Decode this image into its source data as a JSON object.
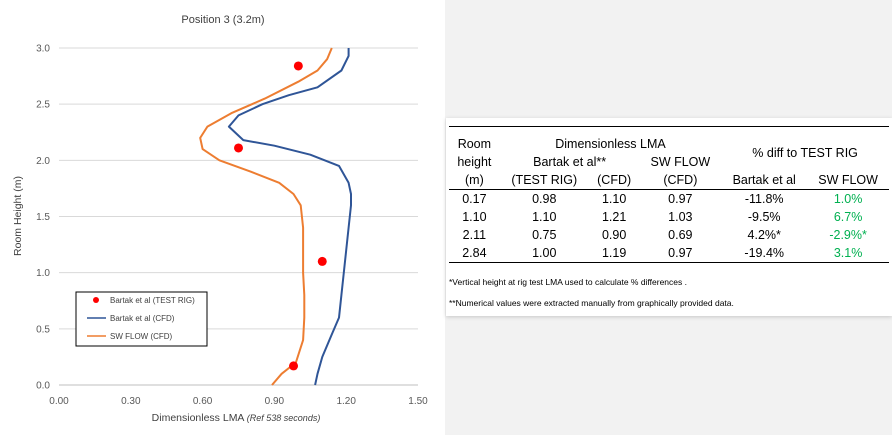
{
  "chart_data": {
    "type": "line",
    "title": "Position 3 (3.2m)",
    "xlabel_main": "Dimensionless LMA ",
    "xlabel_note": "(Ref 538 seconds)",
    "ylabel": "Room Height (m)",
    "xlim": [
      0,
      1.5
    ],
    "ylim": [
      0,
      3.0
    ],
    "xticks": [
      "0.00",
      "0.30",
      "0.60",
      "0.90",
      "1.20",
      "1.50"
    ],
    "yticks": [
      "0.0",
      "0.5",
      "1.0",
      "1.5",
      "2.0",
      "2.5",
      "3.0"
    ],
    "grid": "horizontal",
    "legend_position": "bottom-left",
    "series": [
      {
        "name": "Bartak et al (TEST RIG)",
        "kind": "scatter",
        "color": "#ff0000",
        "x": [
          0.98,
          1.1,
          0.75,
          1.0
        ],
        "y": [
          0.17,
          1.1,
          2.11,
          2.84
        ]
      },
      {
        "name": "Bartak et al (CFD)",
        "kind": "line",
        "color": "#2f5597",
        "x": [
          1.07,
          1.08,
          1.1,
          1.14,
          1.17,
          1.18,
          1.19,
          1.2,
          1.21,
          1.22,
          1.22,
          1.21,
          1.17,
          1.05,
          0.9,
          0.77,
          0.71,
          0.75,
          0.85,
          0.96,
          1.08,
          1.18,
          1.21,
          1.21
        ],
        "y": [
          0.0,
          0.1,
          0.25,
          0.45,
          0.6,
          0.8,
          1.0,
          1.2,
          1.4,
          1.6,
          1.7,
          1.8,
          1.95,
          2.05,
          2.13,
          2.18,
          2.3,
          2.4,
          2.5,
          2.58,
          2.65,
          2.8,
          2.93,
          3.0
        ]
      },
      {
        "name": "SW FLOW (CFD)",
        "kind": "line",
        "color": "#ed7d31",
        "x": [
          0.89,
          0.93,
          0.99,
          1.02,
          1.025,
          1.025,
          1.02,
          1.02,
          1.02,
          1.01,
          0.98,
          0.92,
          0.8,
          0.67,
          0.6,
          0.59,
          0.62,
          0.72,
          0.86,
          1.0,
          1.08,
          1.12,
          1.14
        ],
        "y": [
          0.0,
          0.1,
          0.2,
          0.4,
          0.6,
          0.8,
          1.0,
          1.2,
          1.4,
          1.6,
          1.7,
          1.8,
          1.9,
          2.0,
          2.1,
          2.2,
          2.3,
          2.42,
          2.55,
          2.7,
          2.8,
          2.9,
          3.0
        ]
      }
    ]
  },
  "table": {
    "head_room": [
      "Room",
      "height",
      "(m)"
    ],
    "head_group_lma": "Dimensionless LMA",
    "head_group_diff": "% diff to TEST RIG",
    "head_bartak": "Bartak et al**",
    "head_swflow": "SW FLOW",
    "head_testrig": "(TEST RIG)",
    "head_cfd1": "(CFD)",
    "head_cfd2": "(CFD)",
    "head_diff_bartak": "Bartak et al",
    "head_diff_sw": "SW FLOW",
    "rows": [
      {
        "h": "0.17",
        "rig": "0.98",
        "cfd": "1.10",
        "sw": "0.97",
        "d1": "-11.8%",
        "d2": "1.0%"
      },
      {
        "h": "1.10",
        "rig": "1.10",
        "cfd": "1.21",
        "sw": "1.03",
        "d1": "-9.5%",
        "d2": "6.7%"
      },
      {
        "h": "2.11",
        "rig": "0.75",
        "cfd": "0.90",
        "sw": "0.69",
        "d1": "4.2%*",
        "d2": "-2.9%*"
      },
      {
        "h": "2.84",
        "rig": "1.00",
        "cfd": "1.19",
        "sw": "0.97",
        "d1": "-19.4%",
        "d2": "3.1%"
      }
    ],
    "note1": "*Vertical height at rig test LMA used to calculate % differences .",
    "note2": "**Numerical values were extracted manually from graphically provided data."
  }
}
